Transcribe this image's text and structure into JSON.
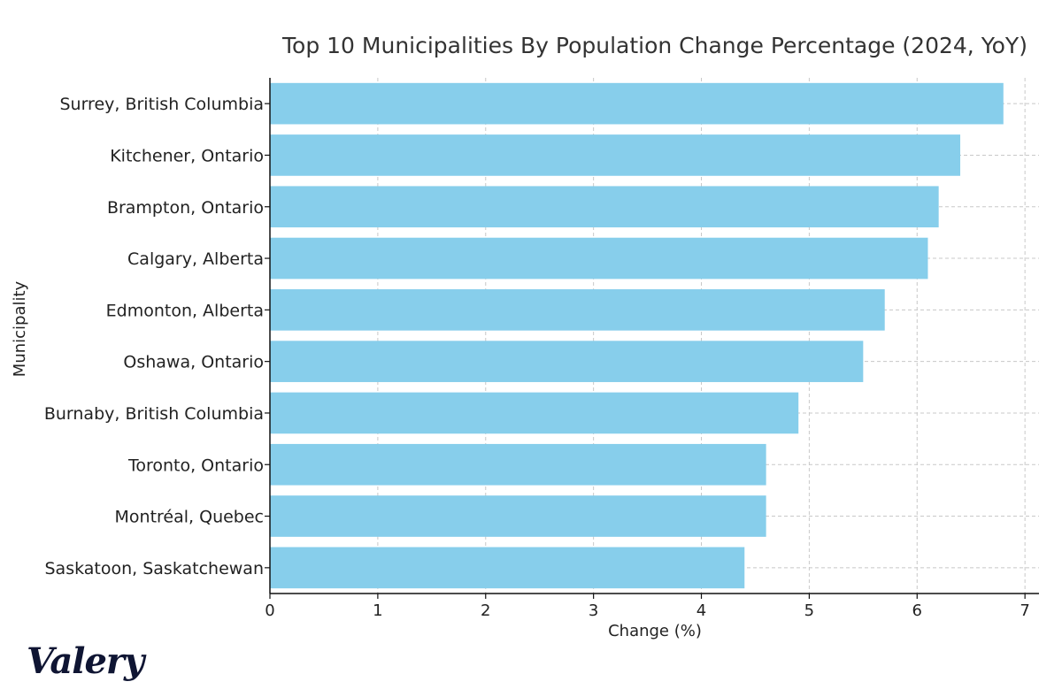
{
  "chart_data": {
    "type": "bar",
    "orientation": "horizontal",
    "title": "Top 10 Municipalities By Population Change Percentage (2024, YoY)",
    "xlabel": "Change (%)",
    "ylabel": "Municipality",
    "categories": [
      "Surrey, British Columbia",
      "Kitchener, Ontario",
      "Brampton, Ontario",
      "Calgary, Alberta",
      "Edmonton, Alberta",
      "Oshawa, Ontario",
      "Burnaby, British Columbia",
      "Toronto, Ontario",
      "Montréal, Quebec",
      "Saskatoon, Saskatchewan"
    ],
    "values": [
      6.8,
      6.4,
      6.2,
      6.1,
      5.7,
      5.5,
      4.9,
      4.6,
      4.6,
      4.4
    ],
    "xlim": [
      0,
      7.13
    ],
    "xticks": [
      0,
      1,
      2,
      3,
      4,
      5,
      6,
      7
    ],
    "grid": true,
    "bar_color": "#87ceeb"
  },
  "brand": {
    "logo_text": "Valery"
  }
}
